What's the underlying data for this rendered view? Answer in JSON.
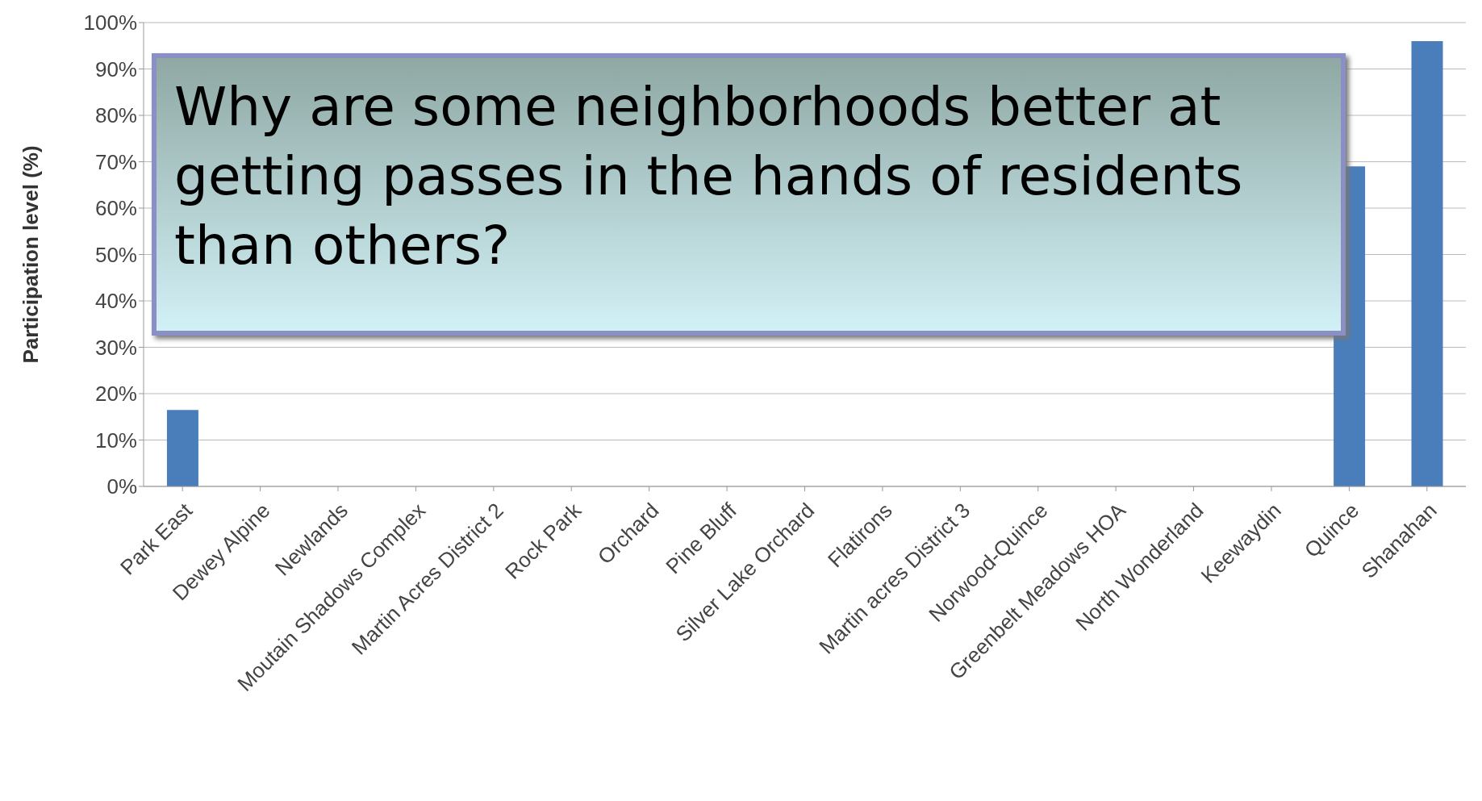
{
  "chart_data": {
    "type": "bar",
    "ylabel": "Participation level (%)",
    "categories": [
      "Park East",
      "Dewey Alpine",
      "Newlands",
      "Moutain Shadows Complex",
      "Martin Acres District 2",
      "Rock Park",
      "Orchard",
      "Pine Bluff",
      "Silver Lake Orchard",
      "Flatirons",
      "Martin acres District 3",
      "Norwood-Quince",
      "Greenbelt Meadows HOA",
      "North Wonderland",
      "Keewaydin",
      "Quince",
      "Shanahan"
    ],
    "values": [
      16.5,
      null,
      null,
      null,
      null,
      null,
      null,
      null,
      null,
      null,
      null,
      null,
      null,
      null,
      null,
      69,
      96
    ],
    "color": "#4a7ebb",
    "ylim": [
      0,
      100
    ],
    "yticks": [
      {
        "value": 0,
        "label": "0%"
      },
      {
        "value": 10,
        "label": "10%"
      },
      {
        "value": 20,
        "label": "20%"
      },
      {
        "value": 30,
        "label": "30%"
      },
      {
        "value": 40,
        "label": "40%"
      },
      {
        "value": 50,
        "label": "50%"
      },
      {
        "value": 60,
        "label": "60%"
      },
      {
        "value": 70,
        "label": "70%"
      },
      {
        "value": 80,
        "label": "80%"
      },
      {
        "value": 90,
        "label": "90%"
      },
      {
        "value": 100,
        "label": "100%"
      }
    ],
    "grid": "y",
    "annotations": [
      "Why are some neighborhoods better at getting passes in the hands of residents than others?"
    ]
  }
}
